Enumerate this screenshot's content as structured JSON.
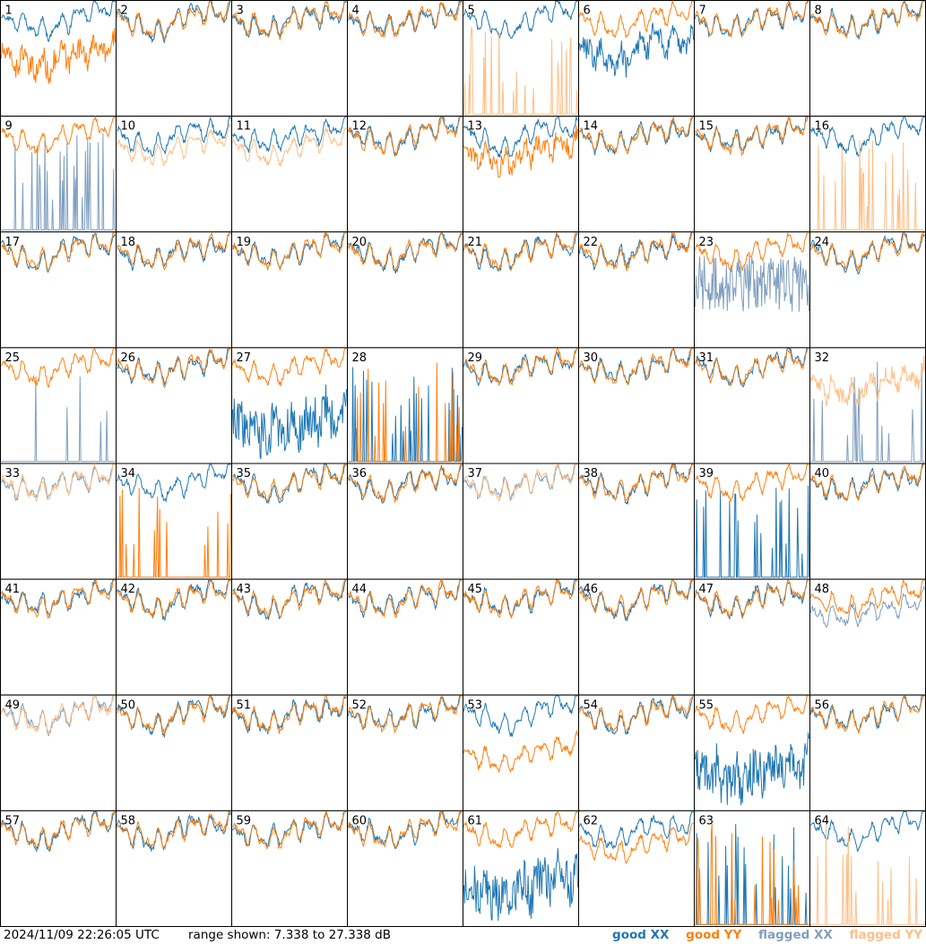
{
  "chart_data": {
    "type": "line",
    "grid": {
      "rows": 8,
      "cols": 8
    },
    "panel_labels": [
      "1",
      "2",
      "3",
      "4",
      "5",
      "6",
      "7",
      "8",
      "9",
      "10",
      "11",
      "12",
      "13",
      "14",
      "15",
      "16",
      "17",
      "18",
      "19",
      "20",
      "21",
      "22",
      "23",
      "24",
      "25",
      "26",
      "27",
      "28",
      "29",
      "30",
      "31",
      "32",
      "33",
      "34",
      "35",
      "36",
      "37",
      "38",
      "39",
      "40",
      "41",
      "42",
      "43",
      "44",
      "45",
      "46",
      "47",
      "48",
      "49",
      "50",
      "51",
      "52",
      "53",
      "54",
      "55",
      "56",
      "57",
      "58",
      "59",
      "60",
      "61",
      "62",
      "63",
      "64"
    ],
    "y_range_db": [
      7.338,
      27.338
    ],
    "legend": [
      {
        "name": "good XX",
        "color": "#1f77b4"
      },
      {
        "name": "good YY",
        "color": "#ff7f0e"
      },
      {
        "name": "flagged XX",
        "color": "#7f9fbf"
      },
      {
        "name": "flagged YY",
        "color": "#ffbf87"
      }
    ],
    "panels": {
      "1": {
        "xx": "good",
        "yy": "good",
        "yy_off": -6.5,
        "xx_off": 0,
        "yy_noise": 2
      },
      "5": {
        "xx": "good",
        "yy": "flagged",
        "yy_mode": "spikes"
      },
      "6": {
        "xx": "good",
        "yy": "good",
        "xx_off": -5,
        "xx_noise": 2
      },
      "9": {
        "xx": "flagged",
        "yy": "good",
        "xx_mode": "spikes"
      },
      "10": {
        "xx": "good",
        "yy": "flagged",
        "yy_off": -2
      },
      "11": {
        "xx": "good",
        "yy": "flagged",
        "yy_off": -2
      },
      "13": {
        "xx": "good",
        "yy": "good",
        "yy_off": -3,
        "yy_noise": 1.5
      },
      "16": {
        "xx": "good",
        "yy": "flagged",
        "yy_mode": "spikes"
      },
      "23": {
        "xx": "flagged",
        "yy": "good",
        "xx_mode": "noisy"
      },
      "25": {
        "xx": "flagged",
        "yy": "good",
        "xx_mode": "spikes_sparse"
      },
      "27": {
        "xx": "good",
        "yy": "good",
        "xx_mode": "noisy_low"
      },
      "28": {
        "xx": "good",
        "yy": "good",
        "xx_mode": "spikes",
        "yy_mode": "spikes"
      },
      "32": {
        "xx": "flagged",
        "yy": "flagged",
        "xx_mode": "spikes",
        "yy_off": -3,
        "yy_noise": 1.5
      },
      "33": {
        "xx": "flagged",
        "yy": "flagged"
      },
      "34": {
        "xx": "good",
        "yy": "good",
        "yy_mode": "spikes"
      },
      "37": {
        "xx": "flagged",
        "yy": "flagged"
      },
      "39": {
        "xx": "good",
        "yy": "good",
        "xx_mode": "spikes"
      },
      "48": {
        "xx": "flagged",
        "yy": "good",
        "xx_off": -2
      },
      "49": {
        "xx": "flagged",
        "yy": "flagged"
      },
      "53": {
        "xx": "good",
        "yy": "good",
        "yy_off": -7,
        "yy_noise": 0.6
      },
      "55": {
        "xx": "good",
        "yy": "good",
        "xx_mode": "noisy_low"
      },
      "61": {
        "xx": "good",
        "yy": "good",
        "xx_mode": "noisy_low"
      },
      "62": {
        "xx": "good",
        "yy": "good",
        "yy_off": -2.5
      },
      "63": {
        "xx": "good",
        "yy": "good",
        "xx_mode": "spikes",
        "yy_mode": "spikes"
      },
      "64": {
        "xx": "good",
        "yy": "flagged",
        "yy_mode": "spikes"
      }
    }
  },
  "footer": {
    "timestamp": "2024/11/09 22:26:05 UTC",
    "range_text": "range shown: 7.338 to 27.338 dB"
  }
}
